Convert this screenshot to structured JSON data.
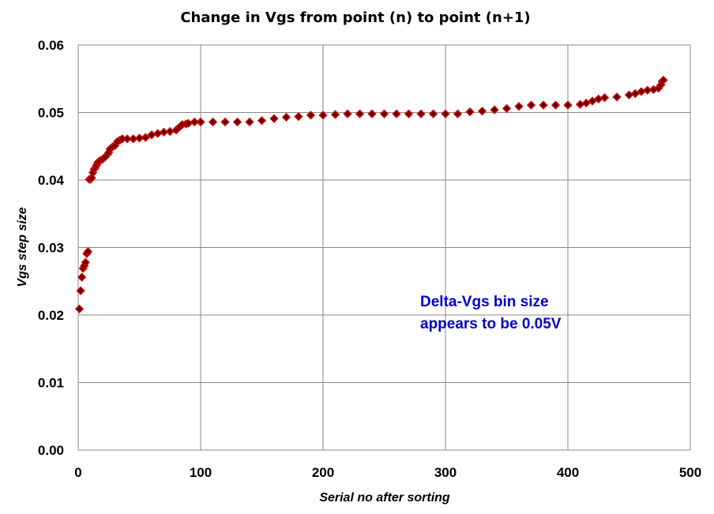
{
  "chart_data": {
    "type": "scatter",
    "title": "Change in Vgs from point (n) to point (n+1)",
    "xlabel": "Serial no after sorting",
    "ylabel": "Vgs step size",
    "xlim": [
      0,
      500
    ],
    "ylim": [
      0,
      0.06
    ],
    "x_ticks": [
      "0",
      "100",
      "200",
      "300",
      "400",
      "500"
    ],
    "y_ticks": [
      "0.00",
      "0.01",
      "0.02",
      "0.03",
      "0.04",
      "0.05",
      "0.06"
    ],
    "grid": true,
    "legend": "none",
    "marker": "diamond",
    "marker_fill": "#5a0000",
    "marker_edge": "#cc0000",
    "annotation": [
      "Delta-Vgs bin size",
      "appears to be 0.05V"
    ],
    "series": [
      {
        "points": [
          [
            1,
            0.0209
          ],
          [
            2,
            0.0236
          ],
          [
            3,
            0.0256
          ],
          [
            4,
            0.0269
          ],
          [
            5,
            0.0273
          ],
          [
            6,
            0.0278
          ],
          [
            7,
            0.0291
          ],
          [
            8,
            0.0294
          ],
          [
            9,
            0.0401
          ],
          [
            10,
            0.0401
          ],
          [
            11,
            0.0403
          ],
          [
            12,
            0.0411
          ],
          [
            13,
            0.0416
          ],
          [
            14,
            0.0418
          ],
          [
            15,
            0.0422
          ],
          [
            16,
            0.0426
          ],
          [
            17,
            0.0427
          ],
          [
            18,
            0.0429
          ],
          [
            20,
            0.0431
          ],
          [
            22,
            0.0434
          ],
          [
            24,
            0.0438
          ],
          [
            25,
            0.0441
          ],
          [
            26,
            0.0446
          ],
          [
            28,
            0.0449
          ],
          [
            30,
            0.0451
          ],
          [
            32,
            0.0457
          ],
          [
            34,
            0.0459
          ],
          [
            36,
            0.0461
          ],
          [
            40,
            0.0461
          ],
          [
            45,
            0.0461
          ],
          [
            50,
            0.0462
          ],
          [
            55,
            0.0463
          ],
          [
            60,
            0.0467
          ],
          [
            65,
            0.0469
          ],
          [
            70,
            0.0471
          ],
          [
            75,
            0.0472
          ],
          [
            80,
            0.0474
          ],
          [
            83,
            0.0479
          ],
          [
            85,
            0.0482
          ],
          [
            88,
            0.0483
          ],
          [
            90,
            0.0484
          ],
          [
            95,
            0.0486
          ],
          [
            100,
            0.0486
          ],
          [
            110,
            0.0486
          ],
          [
            120,
            0.0486
          ],
          [
            130,
            0.0486
          ],
          [
            140,
            0.0486
          ],
          [
            150,
            0.0488
          ],
          [
            160,
            0.0491
          ],
          [
            170,
            0.0493
          ],
          [
            180,
            0.0494
          ],
          [
            190,
            0.0496
          ],
          [
            200,
            0.0496
          ],
          [
            210,
            0.0497
          ],
          [
            220,
            0.0498
          ],
          [
            230,
            0.0498
          ],
          [
            240,
            0.0498
          ],
          [
            250,
            0.0498
          ],
          [
            260,
            0.0498
          ],
          [
            270,
            0.0498
          ],
          [
            280,
            0.0498
          ],
          [
            290,
            0.0498
          ],
          [
            300,
            0.0498
          ],
          [
            310,
            0.0498
          ],
          [
            320,
            0.0501
          ],
          [
            330,
            0.0502
          ],
          [
            340,
            0.0504
          ],
          [
            350,
            0.0506
          ],
          [
            360,
            0.0509
          ],
          [
            370,
            0.0511
          ],
          [
            380,
            0.0511
          ],
          [
            390,
            0.0511
          ],
          [
            400,
            0.0511
          ],
          [
            410,
            0.0512
          ],
          [
            415,
            0.0514
          ],
          [
            420,
            0.0517
          ],
          [
            425,
            0.052
          ],
          [
            430,
            0.0522
          ],
          [
            440,
            0.0523
          ],
          [
            450,
            0.0526
          ],
          [
            455,
            0.0528
          ],
          [
            460,
            0.0531
          ],
          [
            465,
            0.0533
          ],
          [
            470,
            0.0534
          ],
          [
            474,
            0.0536
          ],
          [
            476,
            0.0541
          ],
          [
            477,
            0.0546
          ],
          [
            478,
            0.0548
          ]
        ]
      }
    ]
  }
}
